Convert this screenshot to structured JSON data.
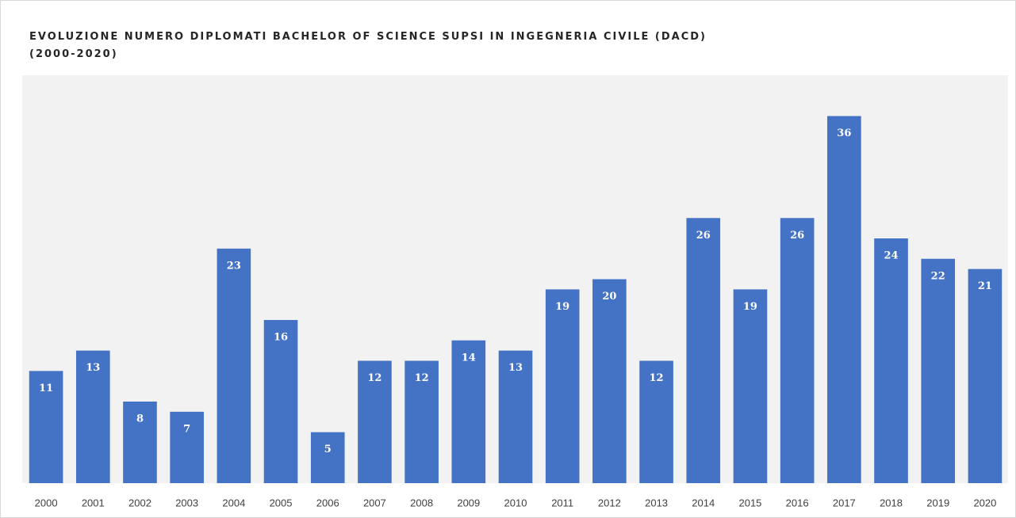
{
  "chart_data": {
    "type": "bar",
    "title": [
      "EVOLUZIONE NUMERO DIPLOMATI BACHELOR OF SCIENCE SUPSI IN INGEGNERIA CIVILE (DACD)",
      "(2000-2020)"
    ],
    "categories": [
      "2000",
      "2001",
      "2002",
      "2003",
      "2004",
      "2005",
      "2006",
      "2007",
      "2008",
      "2009",
      "2010",
      "2011",
      "2012",
      "2013",
      "2014",
      "2015",
      "2016",
      "2017",
      "2018",
      "2019",
      "2020"
    ],
    "values": [
      11,
      13,
      8,
      7,
      23,
      16,
      5,
      12,
      12,
      14,
      13,
      19,
      20,
      12,
      26,
      19,
      26,
      36,
      24,
      22,
      21
    ],
    "color": "#4472c4",
    "ylim": [
      0,
      40
    ]
  }
}
